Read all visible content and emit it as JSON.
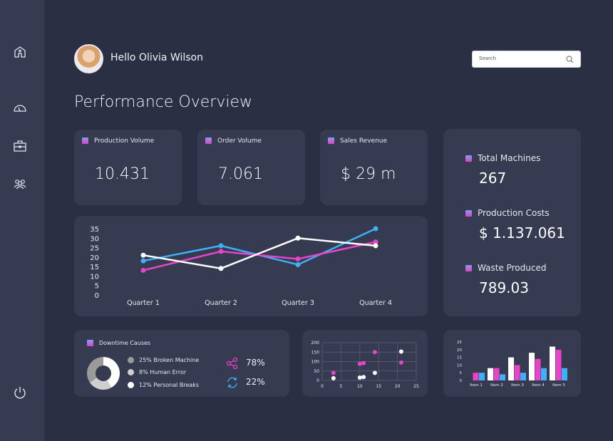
{
  "user": {
    "greeting": "Hello Olivia Wilson"
  },
  "search": {
    "placeholder": "Search"
  },
  "page_title": "Performance Overview",
  "kpis": [
    {
      "label": "Production Volume",
      "value": "10.431"
    },
    {
      "label": "Order Volume",
      "value": "7.061"
    },
    {
      "label": "Sales Revenue",
      "value": "$ 29 m"
    }
  ],
  "summary": [
    {
      "label": "Total Machines",
      "value": "267"
    },
    {
      "label": "Production Costs",
      "value": "$ 1.137.061"
    },
    {
      "label": "Waste Produced",
      "value": "789.03"
    }
  ],
  "downtime": {
    "title": "Downtime Causes",
    "items": [
      {
        "label": "25% Broken Machine",
        "color": "#9a9a9a"
      },
      {
        "label": "8% Human Error",
        "color": "#cfcfcf"
      },
      {
        "label": "12% Personal Breaks",
        "color": "#ffffff"
      }
    ],
    "share_pct": "78%",
    "sync_pct": "22%"
  },
  "colors": {
    "blue": "#3fb0f5",
    "pink": "#e844c8",
    "white": "#ffffff",
    "bg": "#2a2f43",
    "card": "#363b51"
  },
  "chart_data": [
    {
      "type": "line",
      "categories": [
        "Quarter 1",
        "Quarter 2",
        "Quarter 3",
        "Quarter 4"
      ],
      "ylim": [
        0,
        35
      ],
      "yticks": [
        0,
        5,
        10,
        15,
        20,
        25,
        30,
        35
      ],
      "series": [
        {
          "color": "#3fb0f5",
          "values": [
            18,
            26,
            16,
            35
          ]
        },
        {
          "color": "#e844c8",
          "values": [
            13,
            23,
            19,
            28
          ]
        },
        {
          "color": "#ffffff",
          "values": [
            21,
            14,
            30,
            26
          ]
        }
      ]
    },
    {
      "type": "scatter",
      "xlim": [
        0,
        25
      ],
      "ylim": [
        0,
        200
      ],
      "xticks": [
        0,
        5,
        10,
        15,
        20,
        25
      ],
      "yticks": [
        0,
        50,
        100,
        150,
        200
      ],
      "grid": true,
      "series": [
        {
          "color": "#e844c8",
          "points": [
            [
              3,
              40
            ],
            [
              10,
              88
            ],
            [
              11,
              92
            ],
            [
              14,
              150
            ],
            [
              21,
              95
            ]
          ]
        },
        {
          "color": "#ffffff",
          "points": [
            [
              3,
              12
            ],
            [
              10,
              15
            ],
            [
              11,
              18
            ],
            [
              14,
              40
            ],
            [
              21,
              153
            ]
          ]
        }
      ]
    },
    {
      "type": "bar",
      "categories": [
        "Item 1",
        "Item 2",
        "Item 3",
        "Item 4",
        "Item 5"
      ],
      "ylim": [
        0,
        25
      ],
      "yticks": [
        0,
        5,
        10,
        15,
        20,
        25
      ],
      "series": [
        {
          "color": "#ffffff",
          "values": [
            0,
            8,
            15,
            18,
            22
          ]
        },
        {
          "color": "#e844c8",
          "values": [
            5,
            8,
            10,
            14,
            20
          ]
        },
        {
          "color": "#3fb0f5",
          "values": [
            5,
            4,
            5,
            8,
            8
          ]
        }
      ]
    }
  ]
}
